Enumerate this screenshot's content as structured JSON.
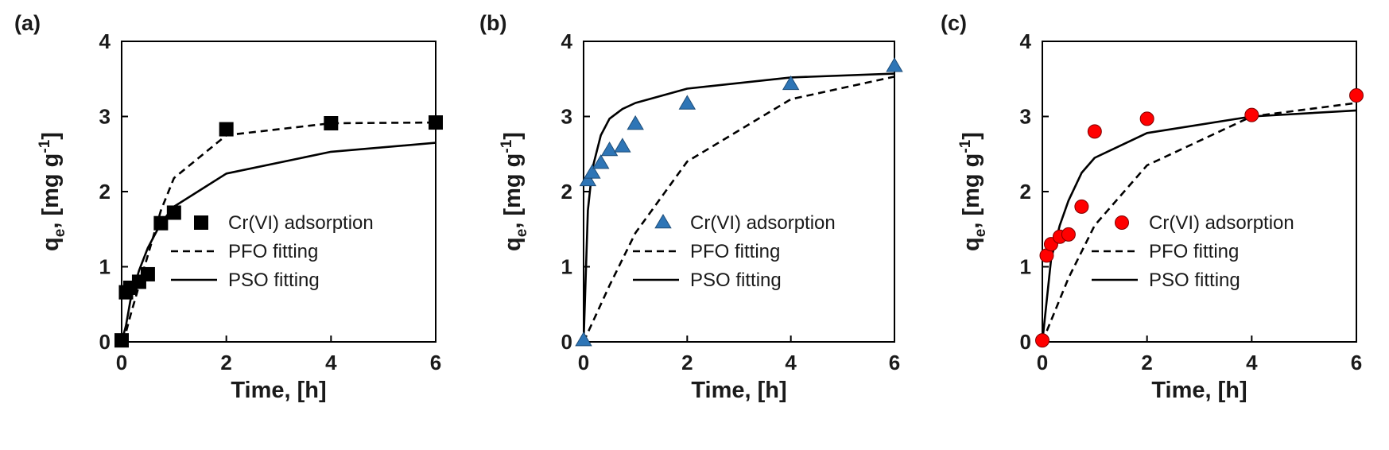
{
  "chart_data": [
    {
      "panel_label": "(a)",
      "type": "scatter",
      "xlabel": "Time, [h]",
      "ylabel": {
        "prefix": "q",
        "sub": "e",
        "mid": ", [mg g",
        "sup": "-1",
        "suffix": "]"
      },
      "xlim": [
        0,
        6
      ],
      "ylim": [
        0,
        4
      ],
      "xticks": [
        "0",
        "2",
        "4",
        "6"
      ],
      "yticks": [
        "0",
        "1",
        "2",
        "3",
        "4"
      ],
      "grid": false,
      "legend_position": "bottom-right",
      "series": [
        {
          "name": "Cr(VI) adsorption",
          "kind": "markers",
          "marker": "square",
          "color": "#000000",
          "x": [
            0,
            0.0833,
            0.1667,
            0.3333,
            0.5,
            0.75,
            1,
            2,
            4,
            6
          ],
          "y": [
            0.02,
            0.66,
            0.72,
            0.8,
            0.9,
            1.58,
            1.72,
            2.83,
            2.91,
            2.92
          ]
        },
        {
          "name": "PFO fitting",
          "kind": "line",
          "dash": "dashed",
          "color": "#000000",
          "x": [
            0,
            0.0833,
            0.1667,
            0.3333,
            0.5,
            0.75,
            1,
            2,
            4,
            6
          ],
          "y": [
            0,
            0.13,
            0.35,
            0.75,
            1.15,
            1.75,
            2.18,
            2.75,
            2.91,
            2.92
          ]
        },
        {
          "name": "PSO fitting",
          "kind": "line",
          "dash": "solid",
          "color": "#000000",
          "x": [
            0,
            0.0833,
            0.1667,
            0.3333,
            0.5,
            0.75,
            1,
            2,
            4,
            6
          ],
          "y": [
            0,
            0.22,
            0.55,
            0.95,
            1.25,
            1.58,
            1.8,
            2.24,
            2.53,
            2.65
          ]
        }
      ]
    },
    {
      "panel_label": "(b)",
      "type": "scatter",
      "xlabel": "Time, [h]",
      "ylabel": {
        "prefix": "q",
        "sub": "e",
        "mid": ", [mg g",
        "sup": "-1",
        "suffix": "]"
      },
      "xlim": [
        0,
        6
      ],
      "ylim": [
        0,
        4
      ],
      "xticks": [
        "0",
        "2",
        "4",
        "6"
      ],
      "yticks": [
        "0",
        "1",
        "2",
        "3",
        "4"
      ],
      "grid": false,
      "legend_position": "bottom-right",
      "series": [
        {
          "name": "Cr(VI) adsorption",
          "kind": "markers",
          "marker": "triangle",
          "color": "#2E75B6",
          "x": [
            0,
            0.0833,
            0.1667,
            0.3333,
            0.5,
            0.75,
            1,
            2,
            4,
            6
          ],
          "y": [
            0.02,
            2.15,
            2.25,
            2.38,
            2.55,
            2.6,
            2.9,
            3.17,
            3.43,
            3.67
          ]
        },
        {
          "name": "PFO fitting",
          "kind": "line",
          "dash": "dashed",
          "color": "#000000",
          "x": [
            0,
            0.5,
            1,
            2,
            4,
            6
          ],
          "y": [
            0,
            0.75,
            1.45,
            2.4,
            3.23,
            3.53
          ]
        },
        {
          "name": "PSO fitting",
          "kind": "line",
          "dash": "solid",
          "color": "#000000",
          "x": [
            0,
            0.0833,
            0.1667,
            0.3333,
            0.5,
            0.75,
            1,
            2,
            4,
            6
          ],
          "y": [
            0,
            1.75,
            2.3,
            2.75,
            2.97,
            3.1,
            3.18,
            3.37,
            3.52,
            3.57
          ]
        }
      ]
    },
    {
      "panel_label": "(c)",
      "type": "scatter",
      "xlabel": "Time, [h]",
      "ylabel": {
        "prefix": "q",
        "sub": "e",
        "mid": ", [mg g",
        "sup": "-1",
        "suffix": "]"
      },
      "xlim": [
        0,
        6
      ],
      "ylim": [
        0,
        4
      ],
      "xticks": [
        "0",
        "2",
        "4",
        "6"
      ],
      "yticks": [
        "0",
        "1",
        "2",
        "3",
        "4"
      ],
      "grid": false,
      "legend_position": "bottom-right",
      "series": [
        {
          "name": "Cr(VI) adsorption",
          "kind": "markers",
          "marker": "circle",
          "color": "#FF0000",
          "x": [
            0,
            0.0833,
            0.1667,
            0.3333,
            0.5,
            0.75,
            1,
            2,
            4,
            6
          ],
          "y": [
            0.02,
            1.15,
            1.3,
            1.4,
            1.43,
            1.8,
            2.8,
            2.97,
            3.02,
            3.28
          ]
        },
        {
          "name": "PFO fitting",
          "kind": "line",
          "dash": "dashed",
          "color": "#000000",
          "x": [
            0,
            0.5,
            1,
            2,
            4,
            6
          ],
          "y": [
            0,
            0.85,
            1.55,
            2.35,
            3.0,
            3.18
          ]
        },
        {
          "name": "PSO fitting",
          "kind": "line",
          "dash": "solid",
          "color": "#000000",
          "x": [
            0,
            0.1667,
            0.3333,
            0.5,
            0.75,
            1,
            2,
            4,
            6
          ],
          "y": [
            0,
            1.1,
            1.55,
            1.88,
            2.25,
            2.45,
            2.78,
            3.0,
            3.08
          ]
        }
      ]
    }
  ]
}
